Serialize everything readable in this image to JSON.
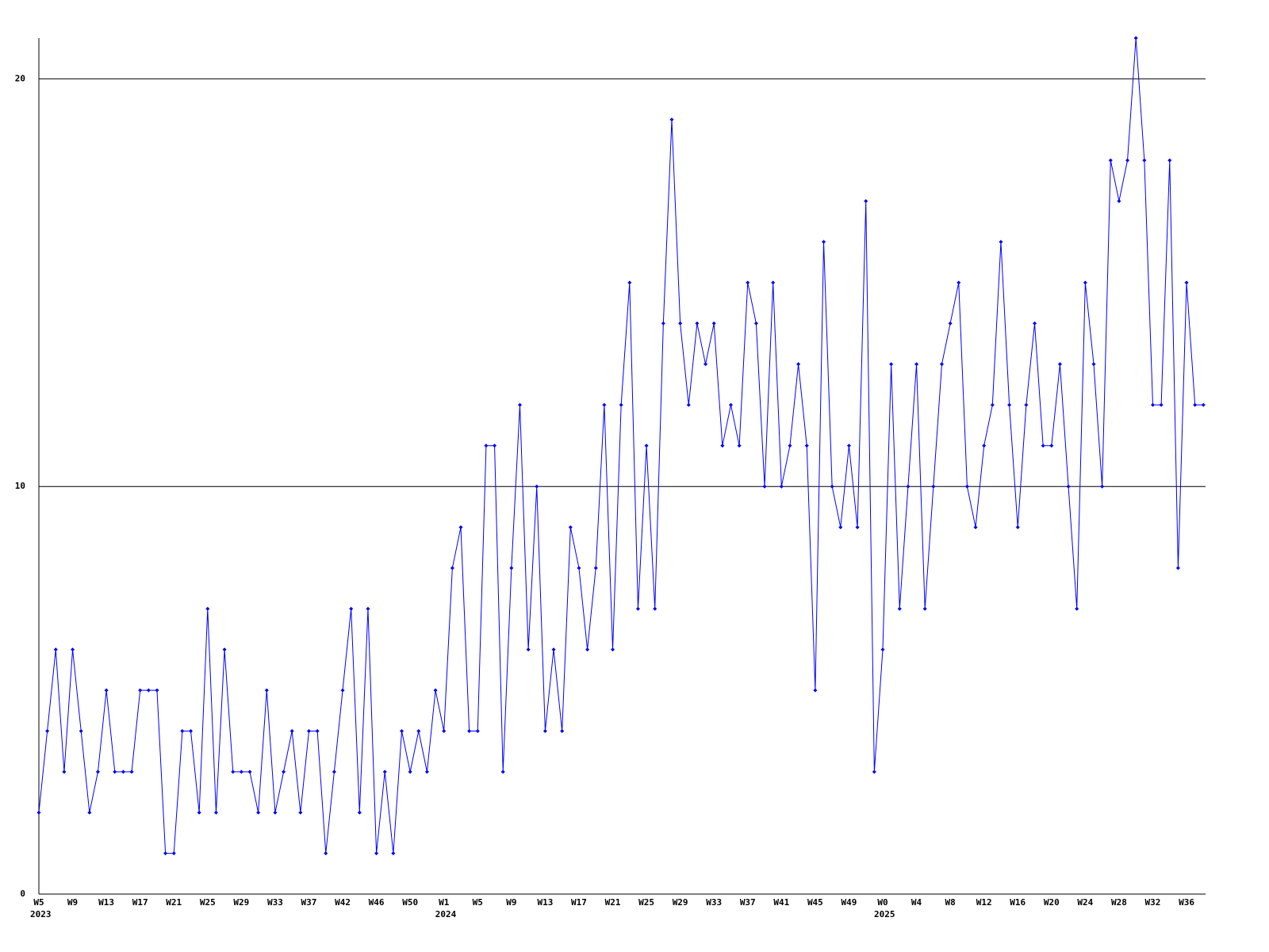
{
  "chart_data": {
    "type": "line",
    "categories": [
      "W5",
      null,
      null,
      null,
      "W9",
      null,
      null,
      null,
      "W13",
      null,
      null,
      null,
      "W17",
      null,
      null,
      null,
      "W21",
      null,
      null,
      null,
      "W25",
      null,
      null,
      null,
      "W29",
      null,
      null,
      null,
      "W33",
      null,
      null,
      null,
      "W37",
      null,
      null,
      null,
      "W42",
      null,
      null,
      null,
      "W46",
      null,
      null,
      null,
      "W50",
      null,
      null,
      null,
      "W1",
      null,
      null,
      null,
      "W5",
      null,
      null,
      null,
      "W9",
      null,
      null,
      null,
      "W13",
      null,
      null,
      null,
      "W17",
      null,
      null,
      null,
      "W21",
      null,
      null,
      null,
      "W25",
      null,
      null,
      null,
      "W29",
      null,
      null,
      null,
      "W33",
      null,
      null,
      null,
      "W37",
      null,
      null,
      null,
      "W41",
      null,
      null,
      null,
      "W45",
      null,
      null,
      null,
      "W49",
      null,
      null,
      null,
      "W0",
      null,
      null,
      null,
      "W4",
      null,
      null,
      null,
      "W8",
      null,
      null,
      null,
      "W12",
      null,
      null,
      null,
      "W16",
      null,
      null,
      null,
      "W20",
      null,
      null,
      null,
      "W24",
      null,
      null,
      null,
      "W28",
      null,
      null,
      null,
      "W32",
      null,
      null,
      null,
      "W36",
      null,
      null
    ],
    "category_years": [
      "2023",
      null,
      null,
      null,
      null,
      null,
      null,
      null,
      null,
      null,
      null,
      null,
      null,
      null,
      null,
      null,
      null,
      null,
      null,
      null,
      null,
      null,
      null,
      null,
      null,
      null,
      null,
      null,
      null,
      null,
      null,
      null,
      null,
      null,
      null,
      null,
      null,
      null,
      null,
      null,
      null,
      null,
      null,
      null,
      null,
      null,
      null,
      null,
      "2024",
      null,
      null,
      null,
      null,
      null,
      null,
      null,
      null,
      null,
      null,
      null,
      null,
      null,
      null,
      null,
      null,
      null,
      null,
      null,
      null,
      null,
      null,
      null,
      null,
      null,
      null,
      null,
      null,
      null,
      null,
      null,
      null,
      null,
      null,
      null,
      null,
      null,
      null,
      null,
      null,
      null,
      null,
      null,
      null,
      null,
      null,
      null,
      null,
      null,
      null,
      null,
      "2025",
      null,
      null,
      null,
      null,
      null,
      null,
      null,
      null,
      null,
      null,
      null,
      null,
      null,
      null,
      null,
      null,
      null,
      null,
      null,
      null,
      null,
      null,
      null,
      null,
      null,
      null,
      null,
      null,
      null,
      null,
      null,
      null,
      null,
      null,
      null,
      null,
      null,
      null
    ],
    "series": [
      {
        "color": "#0000ff",
        "values": [
          2,
          4,
          6,
          3,
          6,
          4,
          2,
          3,
          5,
          3,
          3,
          3,
          5,
          5,
          5,
          1,
          1,
          4,
          4,
          2,
          7,
          2,
          6,
          3,
          3,
          3,
          2,
          5,
          2,
          3,
          4,
          2,
          4,
          4,
          1,
          3,
          5,
          7,
          2,
          7,
          1,
          3,
          1,
          4,
          3,
          4,
          3,
          5,
          4,
          8,
          9,
          4,
          4,
          11,
          11,
          3,
          8,
          12,
          6,
          10,
          4,
          6,
          4,
          9,
          8,
          6,
          8,
          12,
          6,
          12,
          15,
          7,
          11,
          7,
          14,
          19,
          14,
          12,
          14,
          13,
          14,
          11,
          12,
          11,
          15,
          14,
          10,
          15,
          10,
          11,
          13,
          11,
          5,
          16,
          10,
          9,
          11,
          9,
          17,
          3,
          6,
          13,
          7,
          10,
          13,
          7,
          10,
          13,
          14,
          15,
          10,
          9,
          11,
          12,
          16,
          12,
          9,
          12,
          14,
          11,
          11,
          13,
          10,
          7,
          15,
          13,
          10,
          18,
          17,
          18,
          21,
          18,
          12,
          12,
          18,
          8,
          15,
          12,
          12
        ]
      }
    ],
    "ylim": [
      0,
      21
    ],
    "yticks": [
      0,
      10,
      20
    ],
    "grid": true
  }
}
